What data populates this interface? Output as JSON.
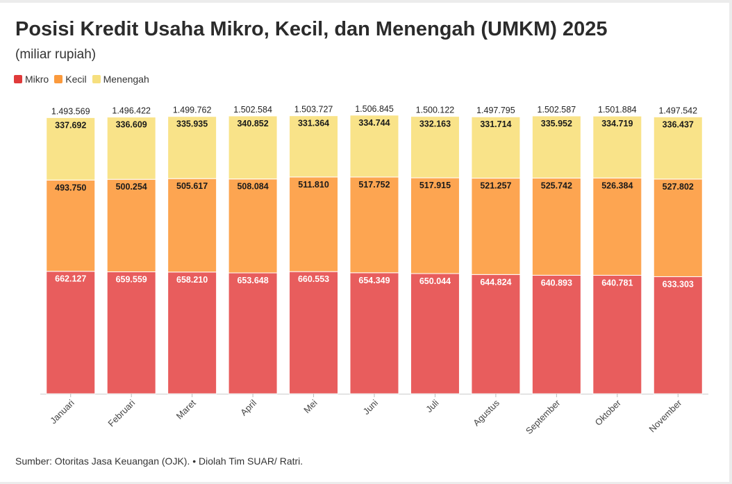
{
  "title": "Posisi Kredit Usaha Mikro, Kecil, dan Menengah (UMKM) 2025",
  "subtitle": "(miliar rupiah)",
  "footer": "Sumber: Otoritas Jasa Keuangan (OJK). • Diolah Tim SUAR/ Ratri.",
  "chart_data": {
    "type": "bar",
    "stacked": true,
    "categories": [
      "Januari",
      "Februari",
      "Maret",
      "April",
      "Mei",
      "Juni",
      "Juli",
      "Agustus",
      "September",
      "Oktober",
      "November"
    ],
    "series": [
      {
        "name": "Mikro",
        "color": "#e85d5d",
        "values": [
          662127,
          659559,
          658210,
          653648,
          660553,
          654349,
          650044,
          644824,
          640893,
          640781,
          633303
        ],
        "labels": [
          "662.127",
          "659.559",
          "658.210",
          "653.648",
          "660.553",
          "654.349",
          "650.044",
          "644.824",
          "640.893",
          "640.781",
          "633.303"
        ]
      },
      {
        "name": "Kecil",
        "color": "#fda551",
        "values": [
          493750,
          500254,
          505617,
          508084,
          511810,
          517752,
          517915,
          521257,
          525742,
          526384,
          527802
        ],
        "labels": [
          "493.750",
          "500.254",
          "505.617",
          "508.084",
          "511.810",
          "517.752",
          "517.915",
          "521.257",
          "525.742",
          "526.384",
          "527.802"
        ]
      },
      {
        "name": "Menengah",
        "color": "#f9e389",
        "values": [
          337692,
          336609,
          335935,
          340852,
          331364,
          334744,
          332163,
          331714,
          335952,
          334719,
          336437
        ],
        "labels": [
          "337.692",
          "336.609",
          "335.935",
          "340.852",
          "331.364",
          "334.744",
          "332.163",
          "331.714",
          "335.952",
          "334.719",
          "336.437"
        ]
      }
    ],
    "totals": [
      1493569,
      1496422,
      1499762,
      1502584,
      1503727,
      1506845,
      1500122,
      1497795,
      1502587,
      1501884,
      1497542
    ],
    "total_labels": [
      "1.493.569",
      "1.496.422",
      "1.499.762",
      "1.502.584",
      "1.503.727",
      "1.506.845",
      "1.500.122",
      "1.497.795",
      "1.502.587",
      "1.501.884",
      "1.497.542"
    ],
    "ylim": [
      0,
      1510000
    ],
    "xlabel": "",
    "ylabel": "",
    "legend": "top-left",
    "grid": false
  }
}
